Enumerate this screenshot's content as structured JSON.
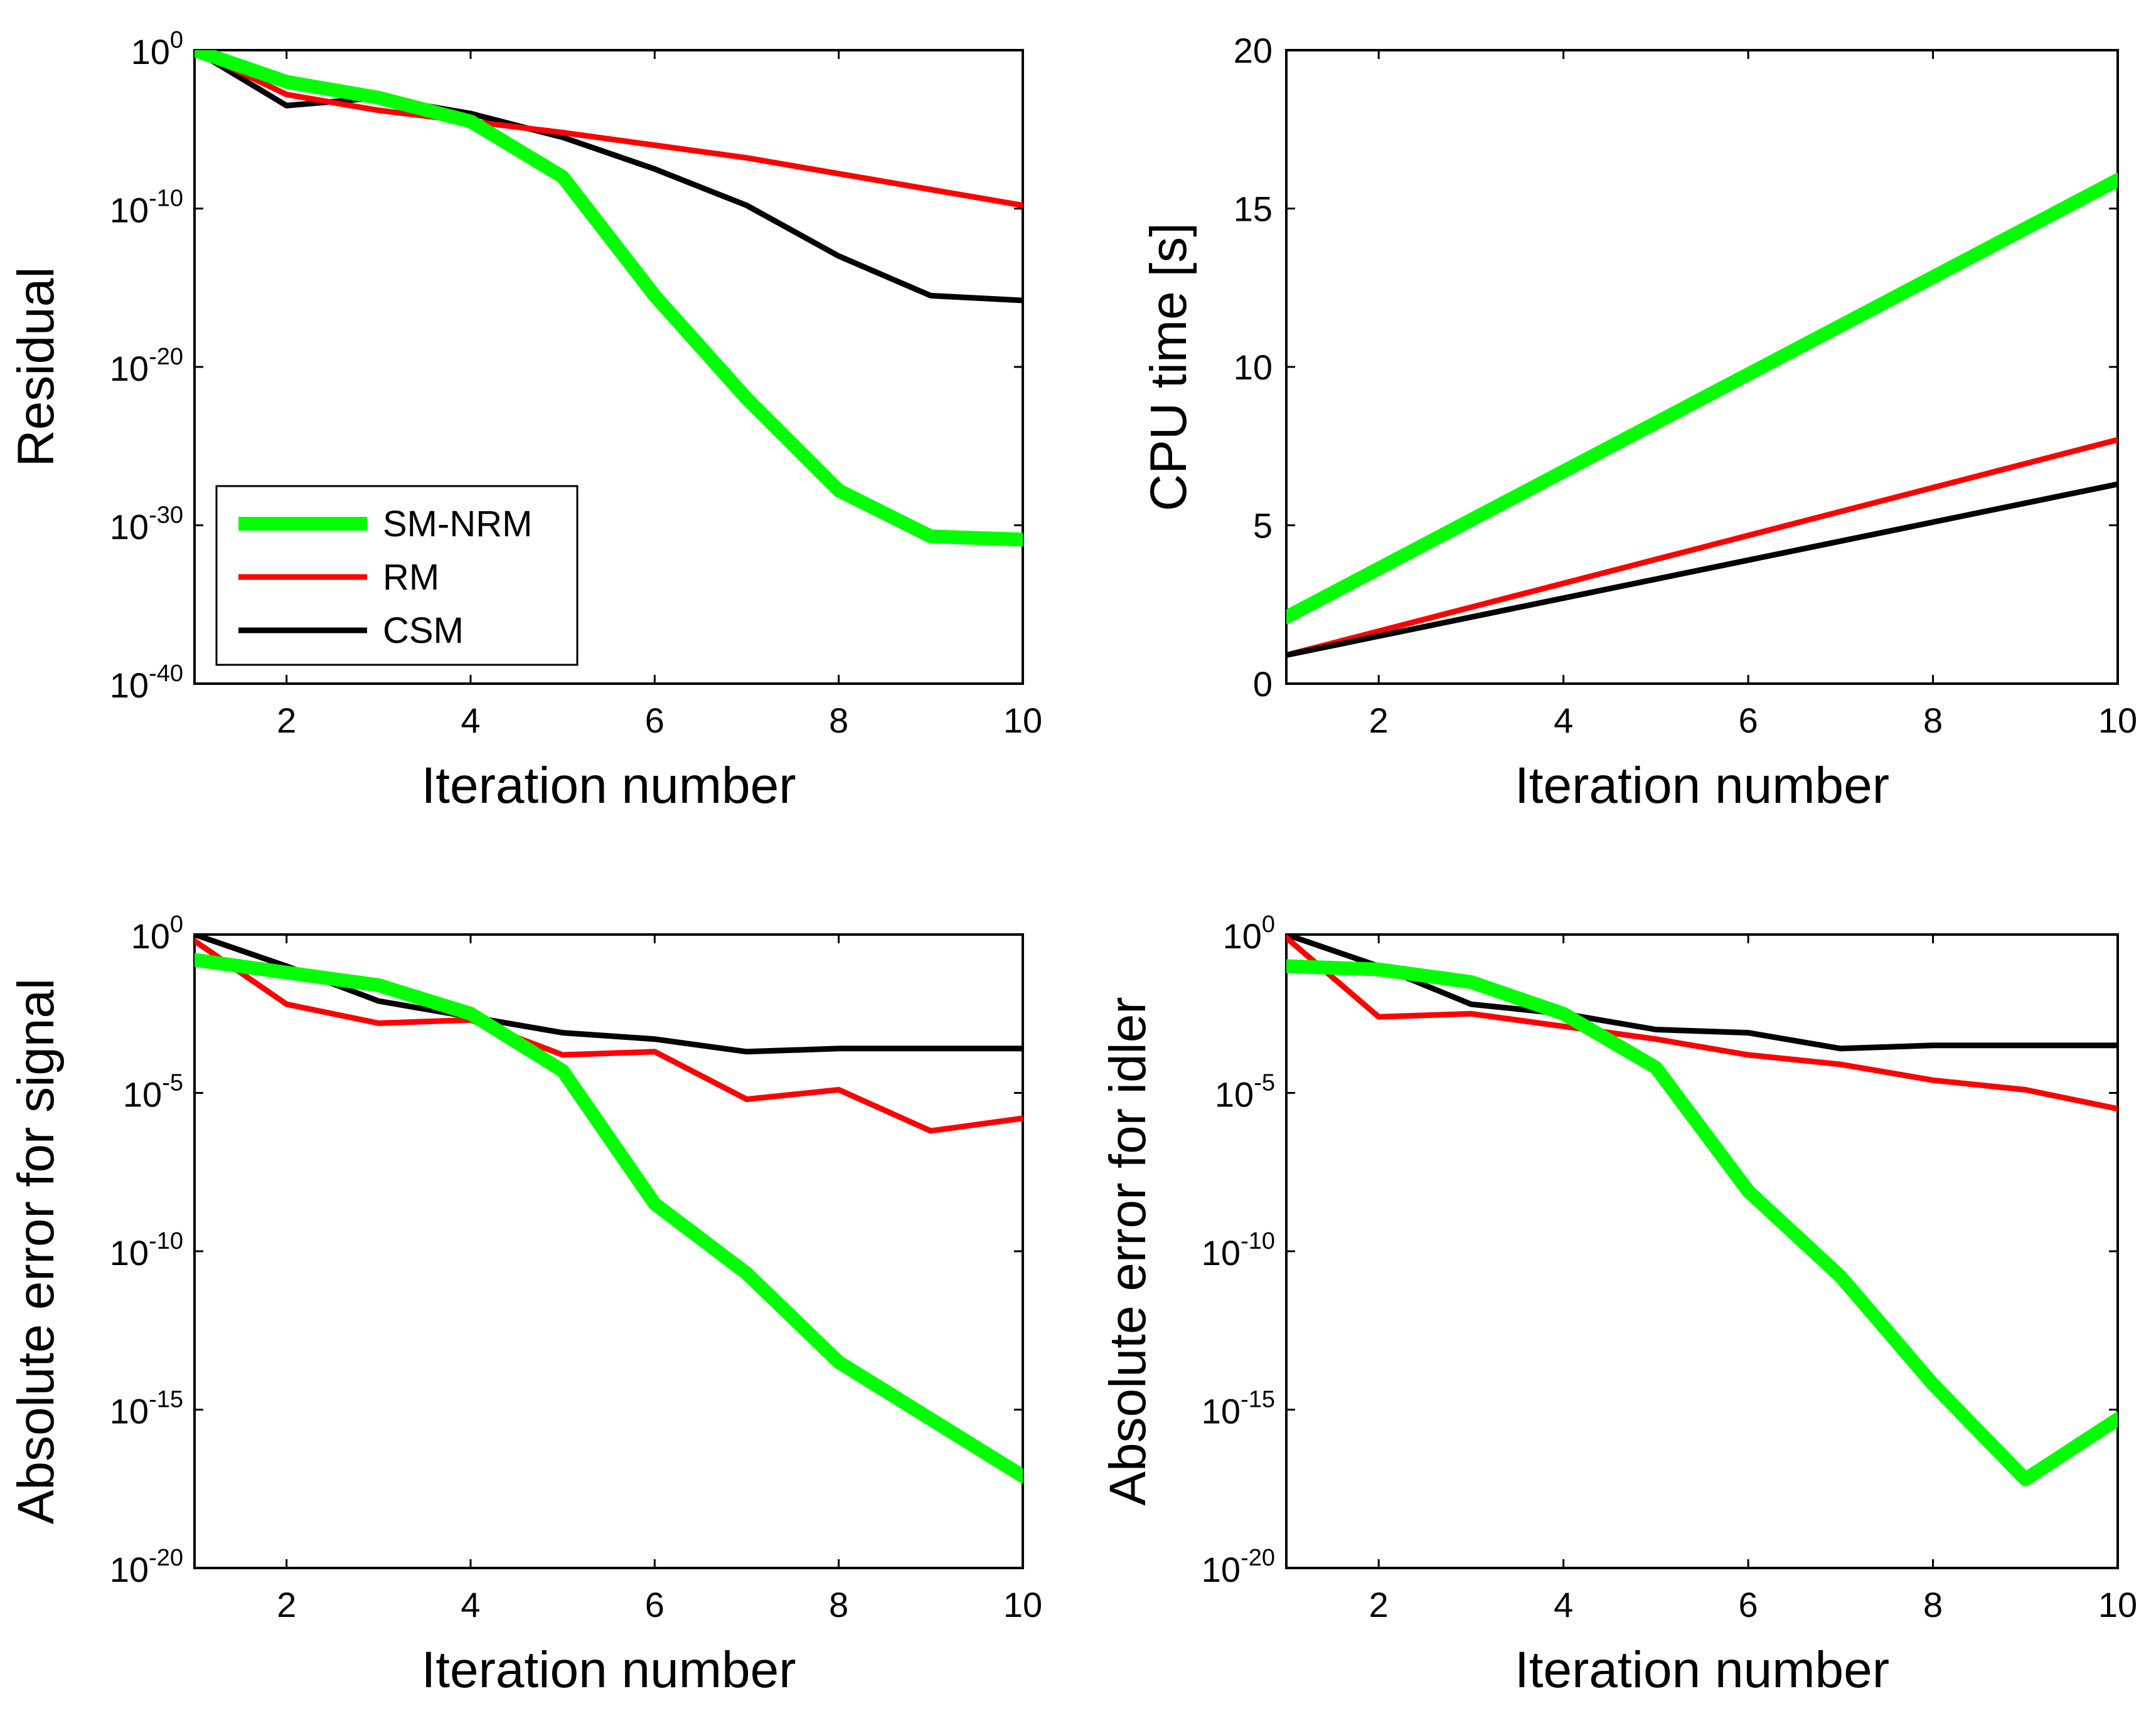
{
  "figure_title": "",
  "chart_data": [
    {
      "id": "residual",
      "type": "line",
      "yscale": "log",
      "title": "",
      "xlabel": "Iteration number",
      "ylabel": "Residual",
      "xlim": [
        1,
        10
      ],
      "ylim_exp": [
        -40,
        0
      ],
      "xticks": [
        2,
        4,
        6,
        8,
        10
      ],
      "yticks": [
        {
          "exp": 0,
          "base": "10",
          "sup": "0"
        },
        {
          "exp": -10,
          "base": "10",
          "sup": "-10"
        },
        {
          "exp": -20,
          "base": "10",
          "sup": "-20"
        },
        {
          "exp": -30,
          "base": "10",
          "sup": "-30"
        },
        {
          "exp": -40,
          "base": "10",
          "sup": "-40"
        }
      ],
      "x": [
        1,
        2,
        3,
        4,
        5,
        6,
        7,
        8,
        9,
        10
      ],
      "series": [
        {
          "name": "CSM",
          "color": "#000000",
          "width": 9,
          "log10_values": [
            0,
            -3.5,
            -3,
            -4,
            -5.5,
            -7.5,
            -9.8,
            -13,
            -15.5,
            -15.8
          ]
        },
        {
          "name": "RM",
          "color": "#ff0000",
          "width": 9,
          "log10_values": [
            0,
            -2.8,
            -3.8,
            -4.5,
            -5.2,
            -6,
            -6.8,
            -7.8,
            -8.8,
            -9.8
          ]
        },
        {
          "name": "SM-NRM",
          "color": "#00ff00",
          "width": 22,
          "log10_values": [
            0,
            -2,
            -3,
            -4.5,
            -8,
            -15.5,
            -22,
            -27.8,
            -30.7,
            -30.9
          ]
        }
      ],
      "legend": {
        "placement": "lower-left",
        "entries": [
          {
            "name": "SM-NRM",
            "color": "#00ff00",
            "width": 22
          },
          {
            "name": "RM",
            "color": "#ff0000",
            "width": 9
          },
          {
            "name": "CSM",
            "color": "#000000",
            "width": 9
          }
        ]
      }
    },
    {
      "id": "cpu-time",
      "type": "line",
      "yscale": "linear",
      "title": "",
      "xlabel": "Iteration number",
      "ylabel": "CPU time [s]",
      "xlim": [
        1,
        10
      ],
      "ylim": [
        0,
        20
      ],
      "xticks": [
        2,
        4,
        6,
        8,
        10
      ],
      "yticks": [
        {
          "value": 0,
          "label": "0"
        },
        {
          "value": 5,
          "label": "5"
        },
        {
          "value": 10,
          "label": "10"
        },
        {
          "value": 15,
          "label": "15"
        },
        {
          "value": 20,
          "label": "20"
        }
      ],
      "x": [
        1,
        10
      ],
      "series": [
        {
          "name": "SM-NRM",
          "color": "#00ff00",
          "width": 22,
          "values": [
            2.1,
            15.9
          ]
        },
        {
          "name": "RM",
          "color": "#ff0000",
          "width": 9,
          "values": [
            0.9,
            7.7
          ]
        },
        {
          "name": "CSM",
          "color": "#000000",
          "width": 9,
          "values": [
            0.9,
            6.3
          ]
        }
      ]
    },
    {
      "id": "error-signal",
      "type": "line",
      "yscale": "log",
      "title": "",
      "xlabel": "Iteration number",
      "ylabel": "Absolute error for signal",
      "xlim": [
        1,
        10
      ],
      "ylim_exp": [
        -20,
        0
      ],
      "xticks": [
        2,
        4,
        6,
        8,
        10
      ],
      "yticks": [
        {
          "exp": 0,
          "base": "10",
          "sup": "0"
        },
        {
          "exp": -5,
          "base": "10",
          "sup": "-5"
        },
        {
          "exp": -10,
          "base": "10",
          "sup": "-10"
        },
        {
          "exp": -15,
          "base": "10",
          "sup": "-15"
        },
        {
          "exp": -20,
          "base": "10",
          "sup": "-20"
        }
      ],
      "x": [
        1,
        2,
        3,
        4,
        5,
        6,
        7,
        8,
        9,
        10
      ],
      "series": [
        {
          "name": "CSM",
          "color": "#000000",
          "width": 9,
          "log10_values": [
            0,
            -1,
            -2.1,
            -2.6,
            -3.1,
            -3.3,
            -3.7,
            -3.6,
            -3.6,
            -3.6
          ]
        },
        {
          "name": "RM",
          "color": "#ff0000",
          "width": 9,
          "log10_values": [
            -0.2,
            -2.2,
            -2.8,
            -2.7,
            -3.8,
            -3.7,
            -5.2,
            -4.9,
            -6.2,
            -5.8
          ]
        },
        {
          "name": "SM-NRM",
          "color": "#00ff00",
          "width": 22,
          "log10_values": [
            -0.8,
            -1.2,
            -1.6,
            -2.5,
            -4.3,
            -8.5,
            -10.7,
            -13.5,
            -15.3,
            -17.1
          ]
        }
      ]
    },
    {
      "id": "error-idler",
      "type": "line",
      "yscale": "log",
      "title": "",
      "xlabel": "Iteration number",
      "ylabel": "Absolute error for idler",
      "xlim": [
        1,
        10
      ],
      "ylim_exp": [
        -20,
        0
      ],
      "xticks": [
        2,
        4,
        6,
        8,
        10
      ],
      "yticks": [
        {
          "exp": 0,
          "base": "10",
          "sup": "0"
        },
        {
          "exp": -5,
          "base": "10",
          "sup": "-5"
        },
        {
          "exp": -10,
          "base": "10",
          "sup": "-10"
        },
        {
          "exp": -15,
          "base": "10",
          "sup": "-15"
        },
        {
          "exp": -20,
          "base": "10",
          "sup": "-20"
        }
      ],
      "x": [
        1,
        2,
        3,
        4,
        5,
        6,
        7,
        8,
        9,
        10
      ],
      "series": [
        {
          "name": "CSM",
          "color": "#000000",
          "width": 9,
          "log10_values": [
            0,
            -1,
            -2.2,
            -2.5,
            -3,
            -3.1,
            -3.6,
            -3.5,
            -3.5,
            -3.5
          ]
        },
        {
          "name": "RM",
          "color": "#ff0000",
          "width": 9,
          "log10_values": [
            -0.1,
            -2.6,
            -2.5,
            -2.9,
            -3.3,
            -3.8,
            -4.1,
            -4.6,
            -4.9,
            -5.5
          ]
        },
        {
          "name": "SM-NRM",
          "color": "#00ff00",
          "width": 22,
          "log10_values": [
            -1,
            -1.1,
            -1.5,
            -2.5,
            -4.2,
            -8.1,
            -10.8,
            -14.2,
            -17.2,
            -15.3
          ]
        }
      ]
    }
  ]
}
